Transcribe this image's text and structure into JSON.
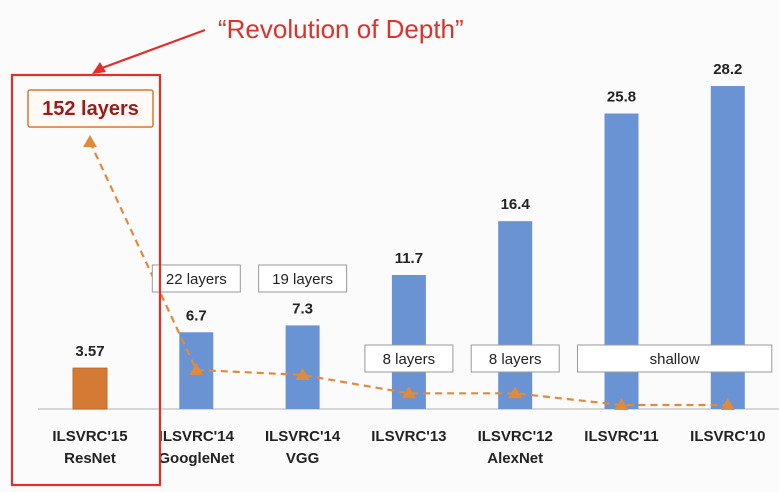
{
  "annotation": {
    "title": "“Revolution of Depth”",
    "highlight_label": "152 layers"
  },
  "colors": {
    "bar": "#6a93d4",
    "bar_highlight": "#d47a35",
    "line": "#e08a3c",
    "highlight_box": "#e0302a",
    "axis": "#c9c9c9"
  },
  "chart_data": {
    "type": "bar",
    "categories": [
      [
        "ILSVRC'15",
        "ResNet"
      ],
      [
        "ILSVRC'14",
        "GoogleNet"
      ],
      [
        "ILSVRC'14",
        "VGG"
      ],
      [
        "ILSVRC'13",
        ""
      ],
      [
        "ILSVRC'12",
        "AlexNet"
      ],
      [
        "ILSVRC'11",
        ""
      ],
      [
        "ILSVRC'10",
        ""
      ]
    ],
    "series": [
      {
        "values": [
          3.57,
          6.7,
          7.3,
          11.7,
          16.4,
          25.8,
          28.2
        ],
        "value_labels": [
          "3.57",
          "6.7",
          "7.3",
          "11.7",
          "16.4",
          "25.8",
          "28.2"
        ]
      }
    ],
    "highlight_index": 0,
    "ylim": [
      0,
      30
    ],
    "depth_line": {
      "values": [
        152,
        22,
        19,
        8,
        8,
        1,
        1
      ]
    },
    "layer_labels": [
      {
        "text": "22 layers",
        "span": [
          1,
          1
        ]
      },
      {
        "text": "19 layers",
        "span": [
          2,
          2
        ]
      },
      {
        "text": "8 layers",
        "span": [
          3,
          3
        ]
      },
      {
        "text": "8 layers",
        "span": [
          4,
          4
        ]
      },
      {
        "text": "shallow",
        "span": [
          5,
          6
        ]
      }
    ]
  }
}
